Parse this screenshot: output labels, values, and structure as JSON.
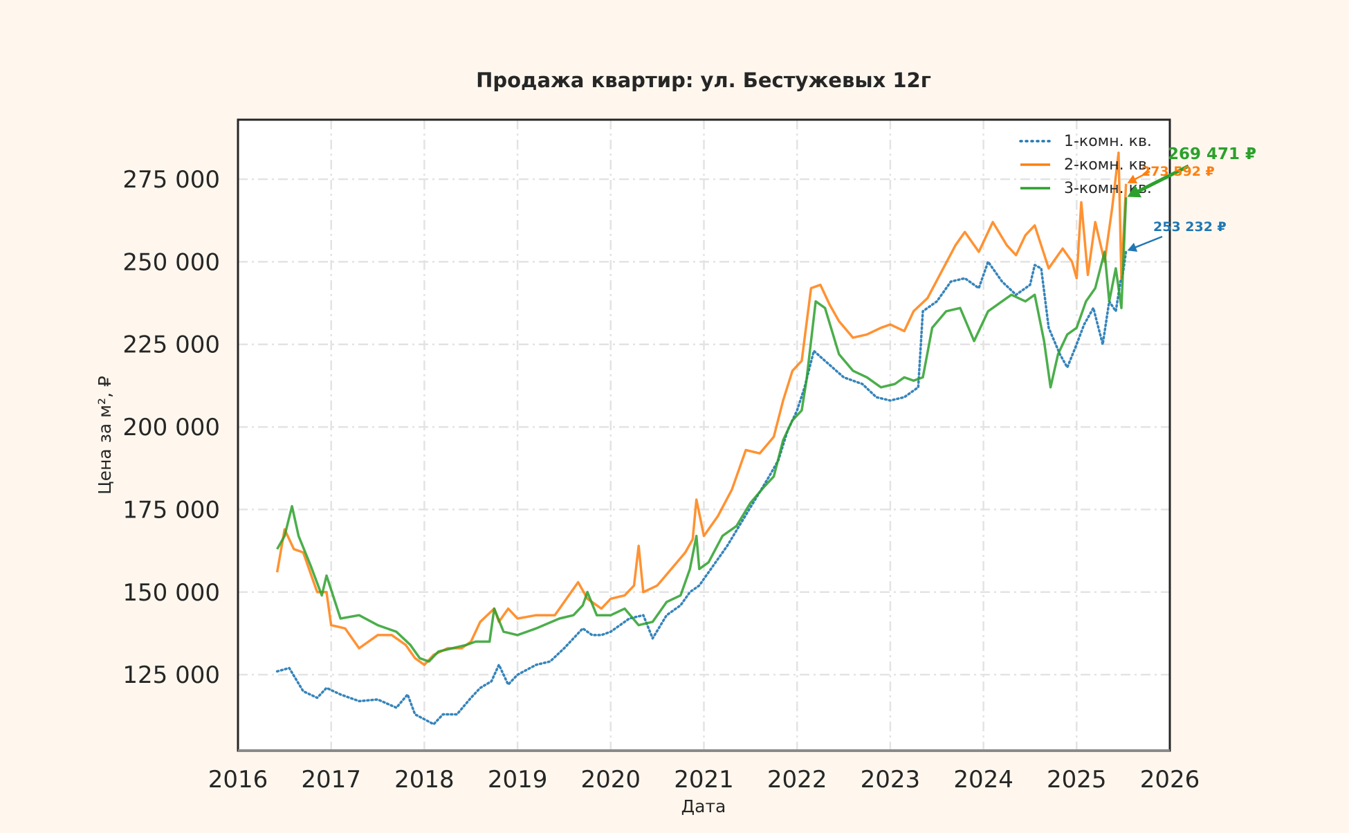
{
  "chart_data": {
    "type": "line",
    "title": "Продажа квартир: ул. Бестужевых 12г",
    "xlabel": "Дата",
    "ylabel": "Цена за м², ₽",
    "xlim": [
      2016.0,
      2026.0
    ],
    "ylim": [
      102000,
      293000
    ],
    "x_ticks": [
      2016,
      2017,
      2018,
      2019,
      2020,
      2021,
      2022,
      2023,
      2024,
      2025,
      2026
    ],
    "x_tick_labels": [
      "2016",
      "2017",
      "2018",
      "2019",
      "2020",
      "2021",
      "2022",
      "2023",
      "2024",
      "2025",
      "2026"
    ],
    "y_ticks": [
      125000,
      150000,
      175000,
      200000,
      225000,
      250000,
      275000
    ],
    "y_tick_labels": [
      "125 000",
      "150 000",
      "175 000",
      "200 000",
      "225 000",
      "250 000",
      "275 000"
    ],
    "grid": true,
    "legend_position": "top-right",
    "series": [
      {
        "name": "1-комн. кв.",
        "color": "#1f77b4",
        "style": "dotted",
        "x": [
          2016.42,
          2016.55,
          2016.7,
          2016.85,
          2016.95,
          2017.1,
          2017.3,
          2017.5,
          2017.7,
          2017.82,
          2017.9,
          2018.0,
          2018.1,
          2018.2,
          2018.35,
          2018.5,
          2018.6,
          2018.72,
          2018.8,
          2018.9,
          2019.0,
          2019.2,
          2019.35,
          2019.5,
          2019.7,
          2019.8,
          2019.9,
          2020.0,
          2020.2,
          2020.35,
          2020.45,
          2020.6,
          2020.75,
          2020.85,
          2020.95,
          2021.1,
          2021.25,
          2021.4,
          2021.55,
          2021.7,
          2021.8,
          2021.9,
          2022.0,
          2022.08,
          2022.18,
          2022.3,
          2022.5,
          2022.7,
          2022.85,
          2023.0,
          2023.15,
          2023.3,
          2023.35,
          2023.5,
          2023.65,
          2023.8,
          2023.95,
          2024.05,
          2024.2,
          2024.35,
          2024.5,
          2024.55,
          2024.62,
          2024.7,
          2024.82,
          2024.9,
          2025.0,
          2025.08,
          2025.18,
          2025.28,
          2025.35,
          2025.42,
          2025.47,
          2025.5,
          2025.53
        ],
        "y": [
          126000,
          127000,
          120000,
          118000,
          121000,
          119000,
          117000,
          117500,
          115000,
          119000,
          113000,
          111500,
          110000,
          113000,
          113000,
          118000,
          121000,
          123000,
          128000,
          122000,
          125000,
          128000,
          129000,
          133000,
          139000,
          137000,
          137000,
          138000,
          142000,
          143000,
          136000,
          143000,
          146000,
          150000,
          152000,
          158000,
          164000,
          171000,
          178000,
          185000,
          190000,
          199000,
          205000,
          212000,
          223000,
          220000,
          215000,
          213000,
          209000,
          208000,
          209000,
          212000,
          235000,
          238000,
          244000,
          245000,
          242000,
          250000,
          244000,
          240000,
          243000,
          249000,
          248000,
          230000,
          222000,
          218000,
          225000,
          231000,
          236000,
          225000,
          238000,
          235000,
          244000,
          247000,
          253232
        ]
      },
      {
        "name": "2-комн. кв.",
        "color": "#ff7f0e",
        "style": "solid",
        "x": [
          2016.42,
          2016.5,
          2016.6,
          2016.7,
          2016.85,
          2016.95,
          2017.0,
          2017.15,
          2017.3,
          2017.5,
          2017.65,
          2017.8,
          2017.9,
          2018.0,
          2018.1,
          2018.25,
          2018.4,
          2018.5,
          2018.6,
          2018.75,
          2018.8,
          2018.9,
          2019.0,
          2019.2,
          2019.4,
          2019.5,
          2019.65,
          2019.75,
          2019.9,
          2020.0,
          2020.15,
          2020.25,
          2020.3,
          2020.35,
          2020.5,
          2020.65,
          2020.8,
          2020.88,
          2020.92,
          2021.0,
          2021.15,
          2021.3,
          2021.45,
          2021.6,
          2021.75,
          2021.85,
          2021.95,
          2022.05,
          2022.15,
          2022.25,
          2022.35,
          2022.45,
          2022.6,
          2022.75,
          2022.9,
          2023.0,
          2023.15,
          2023.25,
          2023.4,
          2023.55,
          2023.7,
          2023.8,
          2023.95,
          2024.1,
          2024.25,
          2024.35,
          2024.45,
          2024.55,
          2024.7,
          2024.85,
          2024.95,
          2025.0,
          2025.05,
          2025.12,
          2025.2,
          2025.3,
          2025.38,
          2025.45,
          2025.48,
          2025.53
        ],
        "y": [
          156000,
          169000,
          163000,
          162000,
          150000,
          150000,
          140000,
          139000,
          133000,
          137000,
          137000,
          134000,
          130000,
          128000,
          131000,
          133000,
          133000,
          135000,
          141000,
          145000,
          141000,
          145000,
          142000,
          143000,
          143000,
          147000,
          153000,
          148000,
          145000,
          148000,
          149000,
          152000,
          164000,
          150000,
          152000,
          157000,
          162000,
          166000,
          178000,
          167000,
          173000,
          181000,
          193000,
          192000,
          197000,
          208000,
          217000,
          220000,
          242000,
          243000,
          237000,
          232000,
          227000,
          228000,
          230000,
          231000,
          229000,
          235000,
          239000,
          247000,
          255000,
          259000,
          253000,
          262000,
          255000,
          252000,
          258000,
          261000,
          248000,
          254000,
          250000,
          245000,
          268000,
          246000,
          262000,
          250000,
          266000,
          283000,
          245000,
          273592
        ]
      },
      {
        "name": "3-комн. кв.",
        "color": "#2ca02c",
        "style": "solid",
        "x": [
          2016.42,
          2016.5,
          2016.58,
          2016.65,
          2016.78,
          2016.9,
          2016.95,
          2017.1,
          2017.3,
          2017.5,
          2017.7,
          2017.85,
          2017.95,
          2018.05,
          2018.15,
          2018.3,
          2018.45,
          2018.55,
          2018.7,
          2018.75,
          2018.85,
          2019.0,
          2019.2,
          2019.45,
          2019.6,
          2019.7,
          2019.75,
          2019.85,
          2020.0,
          2020.15,
          2020.3,
          2020.45,
          2020.6,
          2020.75,
          2020.85,
          2020.92,
          2020.95,
          2021.05,
          2021.2,
          2021.35,
          2021.5,
          2021.65,
          2021.75,
          2021.85,
          2021.95,
          2022.05,
          2022.1,
          2022.2,
          2022.3,
          2022.45,
          2022.6,
          2022.75,
          2022.9,
          2023.05,
          2023.15,
          2023.25,
          2023.35,
          2023.45,
          2023.6,
          2023.75,
          2023.9,
          2024.05,
          2024.2,
          2024.3,
          2024.45,
          2024.55,
          2024.65,
          2024.72,
          2024.8,
          2024.9,
          2025.0,
          2025.1,
          2025.2,
          2025.3,
          2025.35,
          2025.42,
          2025.48,
          2025.53
        ],
        "y": [
          163000,
          167000,
          176000,
          167000,
          158000,
          149000,
          155000,
          142000,
          143000,
          140000,
          138000,
          134000,
          130000,
          129000,
          132000,
          133000,
          134000,
          135000,
          135000,
          145000,
          138000,
          137000,
          139000,
          142000,
          143000,
          146000,
          150000,
          143000,
          143000,
          145000,
          140000,
          141000,
          147000,
          149000,
          157000,
          167000,
          157000,
          159000,
          167000,
          170000,
          177000,
          182000,
          185000,
          196000,
          202000,
          205000,
          214000,
          238000,
          236000,
          222000,
          217000,
          215000,
          212000,
          213000,
          215000,
          214000,
          215000,
          230000,
          235000,
          236000,
          226000,
          235000,
          238000,
          240000,
          238000,
          240000,
          226000,
          212000,
          222000,
          228000,
          230000,
          238000,
          242000,
          253000,
          238000,
          248000,
          236000,
          269471
        ]
      }
    ],
    "annotations": [
      {
        "text": "269 471 ₽",
        "color": "#2ca02c",
        "series": 2
      },
      {
        "text": "273 592 ₽",
        "color": "#ff7f0e",
        "series": 1
      },
      {
        "text": "253 232 ₽",
        "color": "#1f77b4",
        "series": 0
      }
    ]
  }
}
